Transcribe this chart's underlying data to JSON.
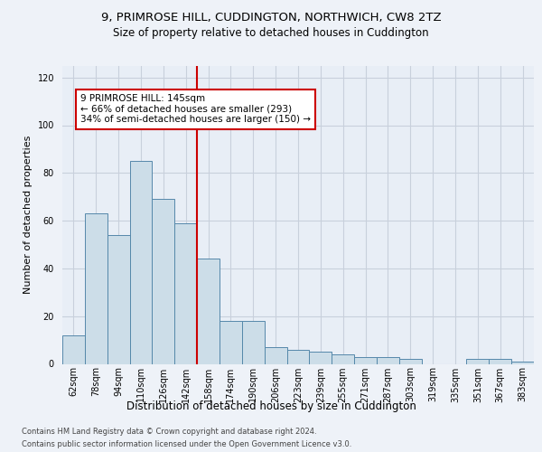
{
  "title_line1": "9, PRIMROSE HILL, CUDDINGTON, NORTHWICH, CW8 2TZ",
  "title_line2": "Size of property relative to detached houses in Cuddington",
  "xlabel": "Distribution of detached houses by size in Cuddington",
  "ylabel": "Number of detached properties",
  "categories": [
    "62sqm",
    "78sqm",
    "94sqm",
    "110sqm",
    "126sqm",
    "142sqm",
    "158sqm",
    "174sqm",
    "190sqm",
    "206sqm",
    "223sqm",
    "239sqm",
    "255sqm",
    "271sqm",
    "287sqm",
    "303sqm",
    "319sqm",
    "335sqm",
    "351sqm",
    "367sqm",
    "383sqm"
  ],
  "values": [
    12,
    63,
    54,
    85,
    69,
    59,
    44,
    18,
    18,
    7,
    6,
    5,
    4,
    3,
    3,
    2,
    0,
    0,
    2,
    2,
    1
  ],
  "bar_color": "#ccdde8",
  "bar_edgecolor": "#5588aa",
  "vline_color": "#cc0000",
  "vline_x_index": 5,
  "annotation_text": "9 PRIMROSE HILL: 145sqm\n← 66% of detached houses are smaller (293)\n34% of semi-detached houses are larger (150) →",
  "annotation_box_facecolor": "#ffffff",
  "annotation_box_edgecolor": "#cc0000",
  "ylim": [
    0,
    125
  ],
  "yticks": [
    0,
    20,
    40,
    60,
    80,
    100,
    120
  ],
  "footer_line1": "Contains HM Land Registry data © Crown copyright and database right 2024.",
  "footer_line2": "Contains public sector information licensed under the Open Government Licence v3.0.",
  "background_color": "#eef2f8",
  "plot_facecolor": "#e8eef6",
  "grid_color": "#c8d0dc",
  "title1_fontsize": 9.5,
  "title2_fontsize": 8.5,
  "ylabel_fontsize": 8,
  "xlabel_fontsize": 8.5,
  "tick_fontsize": 7,
  "footer_fontsize": 6,
  "ann_fontsize": 7.5
}
